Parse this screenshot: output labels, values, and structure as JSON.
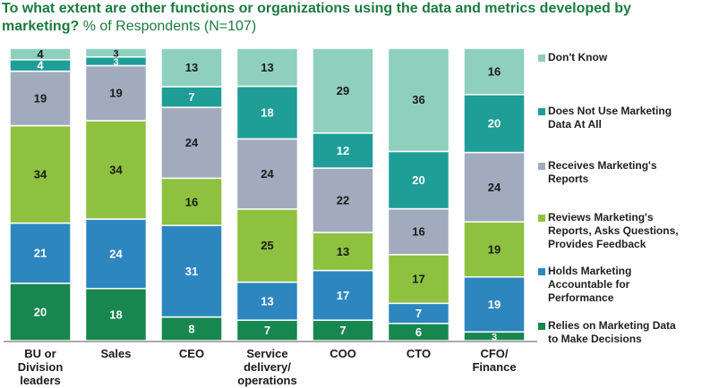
{
  "title": {
    "bold": "To what extent are other functions or organizations using the data and metrics developed by marketing?",
    "rest": " % of Respondents (N=107)"
  },
  "chart_data": {
    "type": "bar",
    "stacked": true,
    "orientation": "vertical",
    "ylim": [
      0,
      100
    ],
    "grid": false,
    "legend_position": "right",
    "categories": [
      "BU or Division leaders",
      "Sales",
      "CEO",
      "Service delivery/ operations",
      "COO",
      "CTO",
      "CFO/ Finance"
    ],
    "category_labels": [
      [
        "BU or",
        "Division",
        "leaders"
      ],
      [
        "Sales"
      ],
      [
        "CEO"
      ],
      [
        "Service",
        "delivery/",
        "operations"
      ],
      [
        "COO"
      ],
      [
        "CTO"
      ],
      [
        "CFO/",
        "Finance"
      ]
    ],
    "series": [
      {
        "name": "Relies on Marketing Data to Make Decisions",
        "color": "#17874f",
        "values": [
          20,
          18,
          8,
          7,
          7,
          6,
          3
        ]
      },
      {
        "name": "Holds Marketing Accountable for Performance",
        "color": "#2e86bf",
        "values": [
          21,
          24,
          31,
          13,
          17,
          7,
          19
        ]
      },
      {
        "name": "Reviews Marketing's Reports, Asks Questions, Provides Feedback",
        "color": "#8dc13f",
        "values": [
          34,
          34,
          16,
          25,
          13,
          17,
          19
        ]
      },
      {
        "name": "Receives Marketing's Reports",
        "color": "#a1abbd",
        "values": [
          19,
          19,
          24,
          24,
          22,
          16,
          24
        ]
      },
      {
        "name": "Does Not Use Marketing Data At All",
        "color": "#1e9e97",
        "values": [
          4,
          3,
          7,
          18,
          12,
          20,
          20
        ]
      },
      {
        "name": "Don't Know",
        "color": "#8ecfbe",
        "values": [
          4,
          3,
          13,
          13,
          29,
          36,
          16
        ]
      }
    ],
    "legend": [
      {
        "lines": [
          "Don't Know"
        ],
        "color": "#8ecfbe"
      },
      {
        "lines": [
          "Does Not Use Marketing",
          "Data At All"
        ],
        "color": "#1e9e97"
      },
      {
        "lines": [
          "Receives Marketing's",
          "Reports"
        ],
        "color": "#a1abbd"
      },
      {
        "lines": [
          "Reviews Marketing's",
          "Reports, Asks Questions,",
          "Provides Feedback"
        ],
        "color": "#8dc13f"
      },
      {
        "lines": [
          "Holds Marketing",
          "Accountable for",
          "Performance"
        ],
        "color": "#2e86bf"
      },
      {
        "lines": [
          "Relies on Marketing Data",
          "to Make Decisions"
        ],
        "color": "#17874f"
      }
    ]
  }
}
